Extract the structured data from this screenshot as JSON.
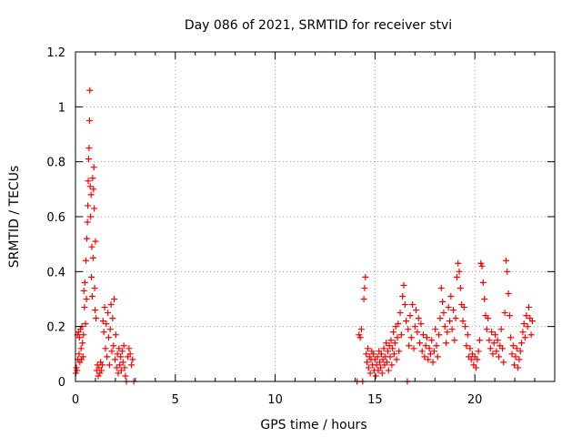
{
  "chart_data": {
    "type": "scatter",
    "title": "Day 086 of 2021, SRMTID for receiver stvi",
    "xlabel": "GPS time / hours",
    "ylabel": "SRMTID / TECUs",
    "xlim": [
      0,
      24
    ],
    "ylim": [
      0,
      1.2
    ],
    "x_ticks": [
      0,
      5,
      10,
      15,
      20
    ],
    "x_tick_labels": [
      "0",
      "5",
      "10",
      "15",
      "20"
    ],
    "y_ticks": [
      0,
      0.2,
      0.4,
      0.6,
      0.8,
      1.0,
      1.2
    ],
    "y_tick_labels": [
      "0",
      "0.2",
      "0.4",
      "0.6",
      "0.8",
      "1",
      "1.2"
    ],
    "grid": true,
    "marker": "plus",
    "color": "#ff0000",
    "series": [
      {
        "name": "SRMTID",
        "points": [
          [
            0.02,
            0.03
          ],
          [
            0.05,
            0.05
          ],
          [
            0.08,
            0.04
          ],
          [
            0.1,
            0.17
          ],
          [
            0.12,
            0.08
          ],
          [
            0.15,
            0.18
          ],
          [
            0.18,
            0.1
          ],
          [
            0.2,
            0.16
          ],
          [
            0.22,
            0.07
          ],
          [
            0.25,
            0.19
          ],
          [
            0.28,
            0.12
          ],
          [
            0.3,
            0.08
          ],
          [
            0.32,
            0.2
          ],
          [
            0.35,
            0.14
          ],
          [
            0.38,
            0.09
          ],
          [
            0.4,
            0.17
          ],
          [
            0.42,
            0.33
          ],
          [
            0.45,
            0.27
          ],
          [
            0.47,
            0.36
          ],
          [
            0.5,
            0.21
          ],
          [
            0.52,
            0.44
          ],
          [
            0.55,
            0.3
          ],
          [
            0.57,
            0.52
          ],
          [
            0.6,
            0.58
          ],
          [
            0.62,
            0.64
          ],
          [
            0.64,
            0.73
          ],
          [
            0.66,
            0.81
          ],
          [
            0.68,
            0.85
          ],
          [
            0.7,
            0.95
          ],
          [
            0.72,
            1.06
          ],
          [
            0.74,
            0.71
          ],
          [
            0.76,
            0.6
          ],
          [
            0.78,
            0.68
          ],
          [
            0.8,
            0.38
          ],
          [
            0.82,
            0.49
          ],
          [
            0.84,
            0.31
          ],
          [
            0.86,
            0.74
          ],
          [
            0.88,
            0.45
          ],
          [
            0.9,
            0.7
          ],
          [
            0.92,
            0.78
          ],
          [
            0.94,
            0.63
          ],
          [
            0.96,
            0.34
          ],
          [
            0.98,
            0.26
          ],
          [
            1.0,
            0.51
          ],
          [
            1.03,
            0.23
          ],
          [
            1.06,
            0.04
          ],
          [
            1.1,
            0.06
          ],
          [
            1.14,
            0.02
          ],
          [
            1.18,
            0.05
          ],
          [
            1.22,
            0.03
          ],
          [
            1.26,
            0.07
          ],
          [
            1.3,
            0.04
          ],
          [
            1.34,
            0.06
          ],
          [
            1.38,
            0.22
          ],
          [
            1.42,
            0.18
          ],
          [
            1.46,
            0.27
          ],
          [
            1.5,
            0.12
          ],
          [
            1.54,
            0.21
          ],
          [
            1.58,
            0.09
          ],
          [
            1.62,
            0.25
          ],
          [
            1.66,
            0.16
          ],
          [
            1.7,
            0.06
          ],
          [
            1.74,
            0.19
          ],
          [
            1.78,
            0.28
          ],
          [
            1.82,
            0.11
          ],
          [
            1.86,
            0.23
          ],
          [
            1.9,
            0.13
          ],
          [
            1.94,
            0.3
          ],
          [
            1.98,
            0.08
          ],
          [
            2.02,
            0.17
          ],
          [
            2.06,
            0.05
          ],
          [
            2.1,
            0.1
          ],
          [
            2.14,
            0.03
          ],
          [
            2.18,
            0.12
          ],
          [
            2.22,
            0.06
          ],
          [
            2.26,
            0.09
          ],
          [
            2.3,
            0.04
          ],
          [
            2.34,
            0.11
          ],
          [
            2.38,
            0.07
          ],
          [
            2.42,
            0.13
          ],
          [
            2.46,
            0.05
          ],
          [
            2.5,
            0.02
          ],
          [
            2.55,
            0.0
          ],
          [
            2.62,
            0.09
          ],
          [
            2.68,
            0.12
          ],
          [
            2.74,
            0.1
          ],
          [
            2.8,
            0.06
          ],
          [
            2.86,
            0.08
          ],
          [
            2.92,
            0.0
          ],
          [
            14.1,
            0.0
          ],
          [
            14.2,
            0.17
          ],
          [
            14.26,
            0.16
          ],
          [
            14.32,
            0.19
          ],
          [
            14.38,
            0.0
          ],
          [
            14.44,
            0.3
          ],
          [
            14.48,
            0.34
          ],
          [
            14.52,
            0.38
          ],
          [
            14.56,
            0.1
          ],
          [
            14.6,
            0.07
          ],
          [
            14.64,
            0.12
          ],
          [
            14.68,
            0.05
          ],
          [
            14.72,
            0.09
          ],
          [
            14.76,
            0.03
          ],
          [
            14.8,
            0.08
          ],
          [
            14.84,
            0.11
          ],
          [
            14.88,
            0.06
          ],
          [
            14.92,
            0.1
          ],
          [
            14.96,
            0.04
          ],
          [
            15.0,
            0.08
          ],
          [
            15.04,
            0.02
          ],
          [
            15.08,
            0.06
          ],
          [
            15.12,
            0.09
          ],
          [
            15.16,
            0.04
          ],
          [
            15.2,
            0.11
          ],
          [
            15.24,
            0.07
          ],
          [
            15.28,
            0.05
          ],
          [
            15.32,
            0.1
          ],
          [
            15.36,
            0.03
          ],
          [
            15.4,
            0.08
          ],
          [
            15.44,
            0.12
          ],
          [
            15.48,
            0.06
          ],
          [
            15.52,
            0.09
          ],
          [
            15.56,
            0.14
          ],
          [
            15.6,
            0.07
          ],
          [
            15.64,
            0.11
          ],
          [
            15.68,
            0.04
          ],
          [
            15.72,
            0.13
          ],
          [
            15.76,
            0.09
          ],
          [
            15.8,
            0.15
          ],
          [
            15.84,
            0.06
          ],
          [
            15.88,
            0.12
          ],
          [
            15.92,
            0.18
          ],
          [
            15.96,
            0.1
          ],
          [
            16.0,
            0.14
          ],
          [
            16.04,
            0.2
          ],
          [
            16.08,
            0.08
          ],
          [
            16.12,
            0.16
          ],
          [
            16.16,
            0.21
          ],
          [
            16.2,
            0.11
          ],
          [
            16.26,
            0.25
          ],
          [
            16.32,
            0.17
          ],
          [
            16.38,
            0.31
          ],
          [
            16.44,
            0.35
          ],
          [
            16.5,
            0.28
          ],
          [
            16.56,
            0.22
          ],
          [
            16.62,
            0.0
          ],
          [
            16.66,
            0.19
          ],
          [
            16.7,
            0.13
          ],
          [
            16.76,
            0.24
          ],
          [
            16.82,
            0.16
          ],
          [
            16.88,
            0.28
          ],
          [
            16.94,
            0.12
          ],
          [
            17.0,
            0.2
          ],
          [
            17.06,
            0.26
          ],
          [
            17.12,
            0.18
          ],
          [
            17.18,
            0.23
          ],
          [
            17.24,
            0.14
          ],
          [
            17.3,
            0.21
          ],
          [
            17.36,
            0.11
          ],
          [
            17.42,
            0.17
          ],
          [
            17.48,
            0.09
          ],
          [
            17.54,
            0.13
          ],
          [
            17.6,
            0.16
          ],
          [
            17.66,
            0.08
          ],
          [
            17.72,
            0.12
          ],
          [
            17.78,
            0.1
          ],
          [
            17.84,
            0.15
          ],
          [
            17.9,
            0.07
          ],
          [
            17.96,
            0.11
          ],
          [
            18.02,
            0.19
          ],
          [
            18.08,
            0.13
          ],
          [
            18.14,
            0.09
          ],
          [
            18.2,
            0.17
          ],
          [
            18.26,
            0.23
          ],
          [
            18.32,
            0.34
          ],
          [
            18.38,
            0.29
          ],
          [
            18.44,
            0.25
          ],
          [
            18.5,
            0.2
          ],
          [
            18.56,
            0.14
          ],
          [
            18.62,
            0.18
          ],
          [
            18.68,
            0.27
          ],
          [
            18.74,
            0.22
          ],
          [
            18.8,
            0.31
          ],
          [
            18.86,
            0.19
          ],
          [
            18.92,
            0.26
          ],
          [
            18.98,
            0.15
          ],
          [
            19.04,
            0.23
          ],
          [
            19.1,
            0.38
          ],
          [
            19.16,
            0.43
          ],
          [
            19.22,
            0.4
          ],
          [
            19.28,
            0.34
          ],
          [
            19.34,
            0.28
          ],
          [
            19.4,
            0.22
          ],
          [
            19.46,
            0.27
          ],
          [
            19.52,
            0.2
          ],
          [
            19.58,
            0.13
          ],
          [
            19.64,
            0.17
          ],
          [
            19.7,
            0.09
          ],
          [
            19.76,
            0.12
          ],
          [
            19.82,
            0.08
          ],
          [
            19.88,
            0.1
          ],
          [
            19.94,
            0.06
          ],
          [
            20.0,
            0.09
          ],
          [
            20.06,
            0.05
          ],
          [
            20.12,
            0.08
          ],
          [
            20.18,
            0.11
          ],
          [
            20.24,
            0.15
          ],
          [
            20.3,
            0.43
          ],
          [
            20.36,
            0.42
          ],
          [
            20.42,
            0.36
          ],
          [
            20.48,
            0.3
          ],
          [
            20.54,
            0.24
          ],
          [
            20.6,
            0.19
          ],
          [
            20.66,
            0.23
          ],
          [
            20.72,
            0.15
          ],
          [
            20.78,
            0.12
          ],
          [
            20.84,
            0.18
          ],
          [
            20.9,
            0.1
          ],
          [
            20.96,
            0.14
          ],
          [
            21.02,
            0.17
          ],
          [
            21.08,
            0.11
          ],
          [
            21.14,
            0.15
          ],
          [
            21.2,
            0.09
          ],
          [
            21.26,
            0.13
          ],
          [
            21.32,
            0.19
          ],
          [
            21.38,
            0.12
          ],
          [
            21.44,
            0.07
          ],
          [
            21.5,
            0.25
          ],
          [
            21.56,
            0.44
          ],
          [
            21.62,
            0.4
          ],
          [
            21.68,
            0.32
          ],
          [
            21.74,
            0.24
          ],
          [
            21.8,
            0.16
          ],
          [
            21.86,
            0.1
          ],
          [
            21.92,
            0.13
          ],
          [
            21.98,
            0.06
          ],
          [
            22.04,
            0.09
          ],
          [
            22.1,
            0.12
          ],
          [
            22.16,
            0.05
          ],
          [
            22.22,
            0.08
          ],
          [
            22.28,
            0.11
          ],
          [
            22.34,
            0.14
          ],
          [
            22.4,
            0.18
          ],
          [
            22.46,
            0.21
          ],
          [
            22.52,
            0.16
          ],
          [
            22.58,
            0.24
          ],
          [
            22.64,
            0.2
          ],
          [
            22.7,
            0.27
          ],
          [
            22.76,
            0.23
          ],
          [
            22.82,
            0.17
          ],
          [
            22.88,
            0.22
          ]
        ]
      }
    ]
  }
}
